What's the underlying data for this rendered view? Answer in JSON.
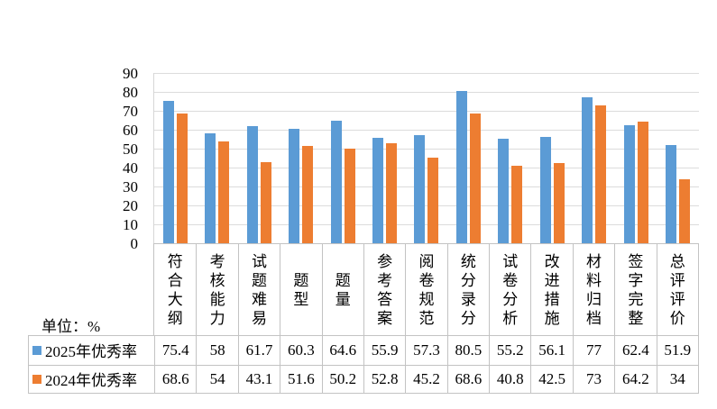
{
  "unit_label": "单位：%",
  "colors": {
    "series_2025": "#5B9BD5",
    "series_2024": "#ED7D31",
    "gridline": "#DCDCDC",
    "table_border": "#C3C3C3"
  },
  "chart_data": {
    "type": "bar",
    "title": "",
    "xlabel": "",
    "ylabel": "",
    "unit": "%",
    "ylim": [
      0,
      90
    ],
    "yticks": [
      0,
      10,
      20,
      30,
      40,
      50,
      60,
      70,
      80,
      90
    ],
    "grid": true,
    "legend_position": "bottom-table",
    "categories": [
      "符合大纲",
      "考核能力",
      "试题难易",
      "题型",
      "题量",
      "参考答案",
      "阅卷规范",
      "统分录分",
      "试卷分析",
      "改进措施",
      "材料归档",
      "签字完整",
      "总评评价"
    ],
    "series": [
      {
        "name": "2025年优秀率",
        "color": "#5B9BD5",
        "values": [
          75.4,
          58,
          61.7,
          60.3,
          64.6,
          55.9,
          57.3,
          80.5,
          55.2,
          56.1,
          77,
          62.4,
          51.9
        ]
      },
      {
        "name": "2024年优秀率",
        "color": "#ED7D31",
        "values": [
          68.6,
          54,
          43.1,
          51.6,
          50.2,
          52.8,
          45.2,
          68.6,
          40.8,
          42.5,
          73,
          64.2,
          34
        ]
      }
    ]
  }
}
